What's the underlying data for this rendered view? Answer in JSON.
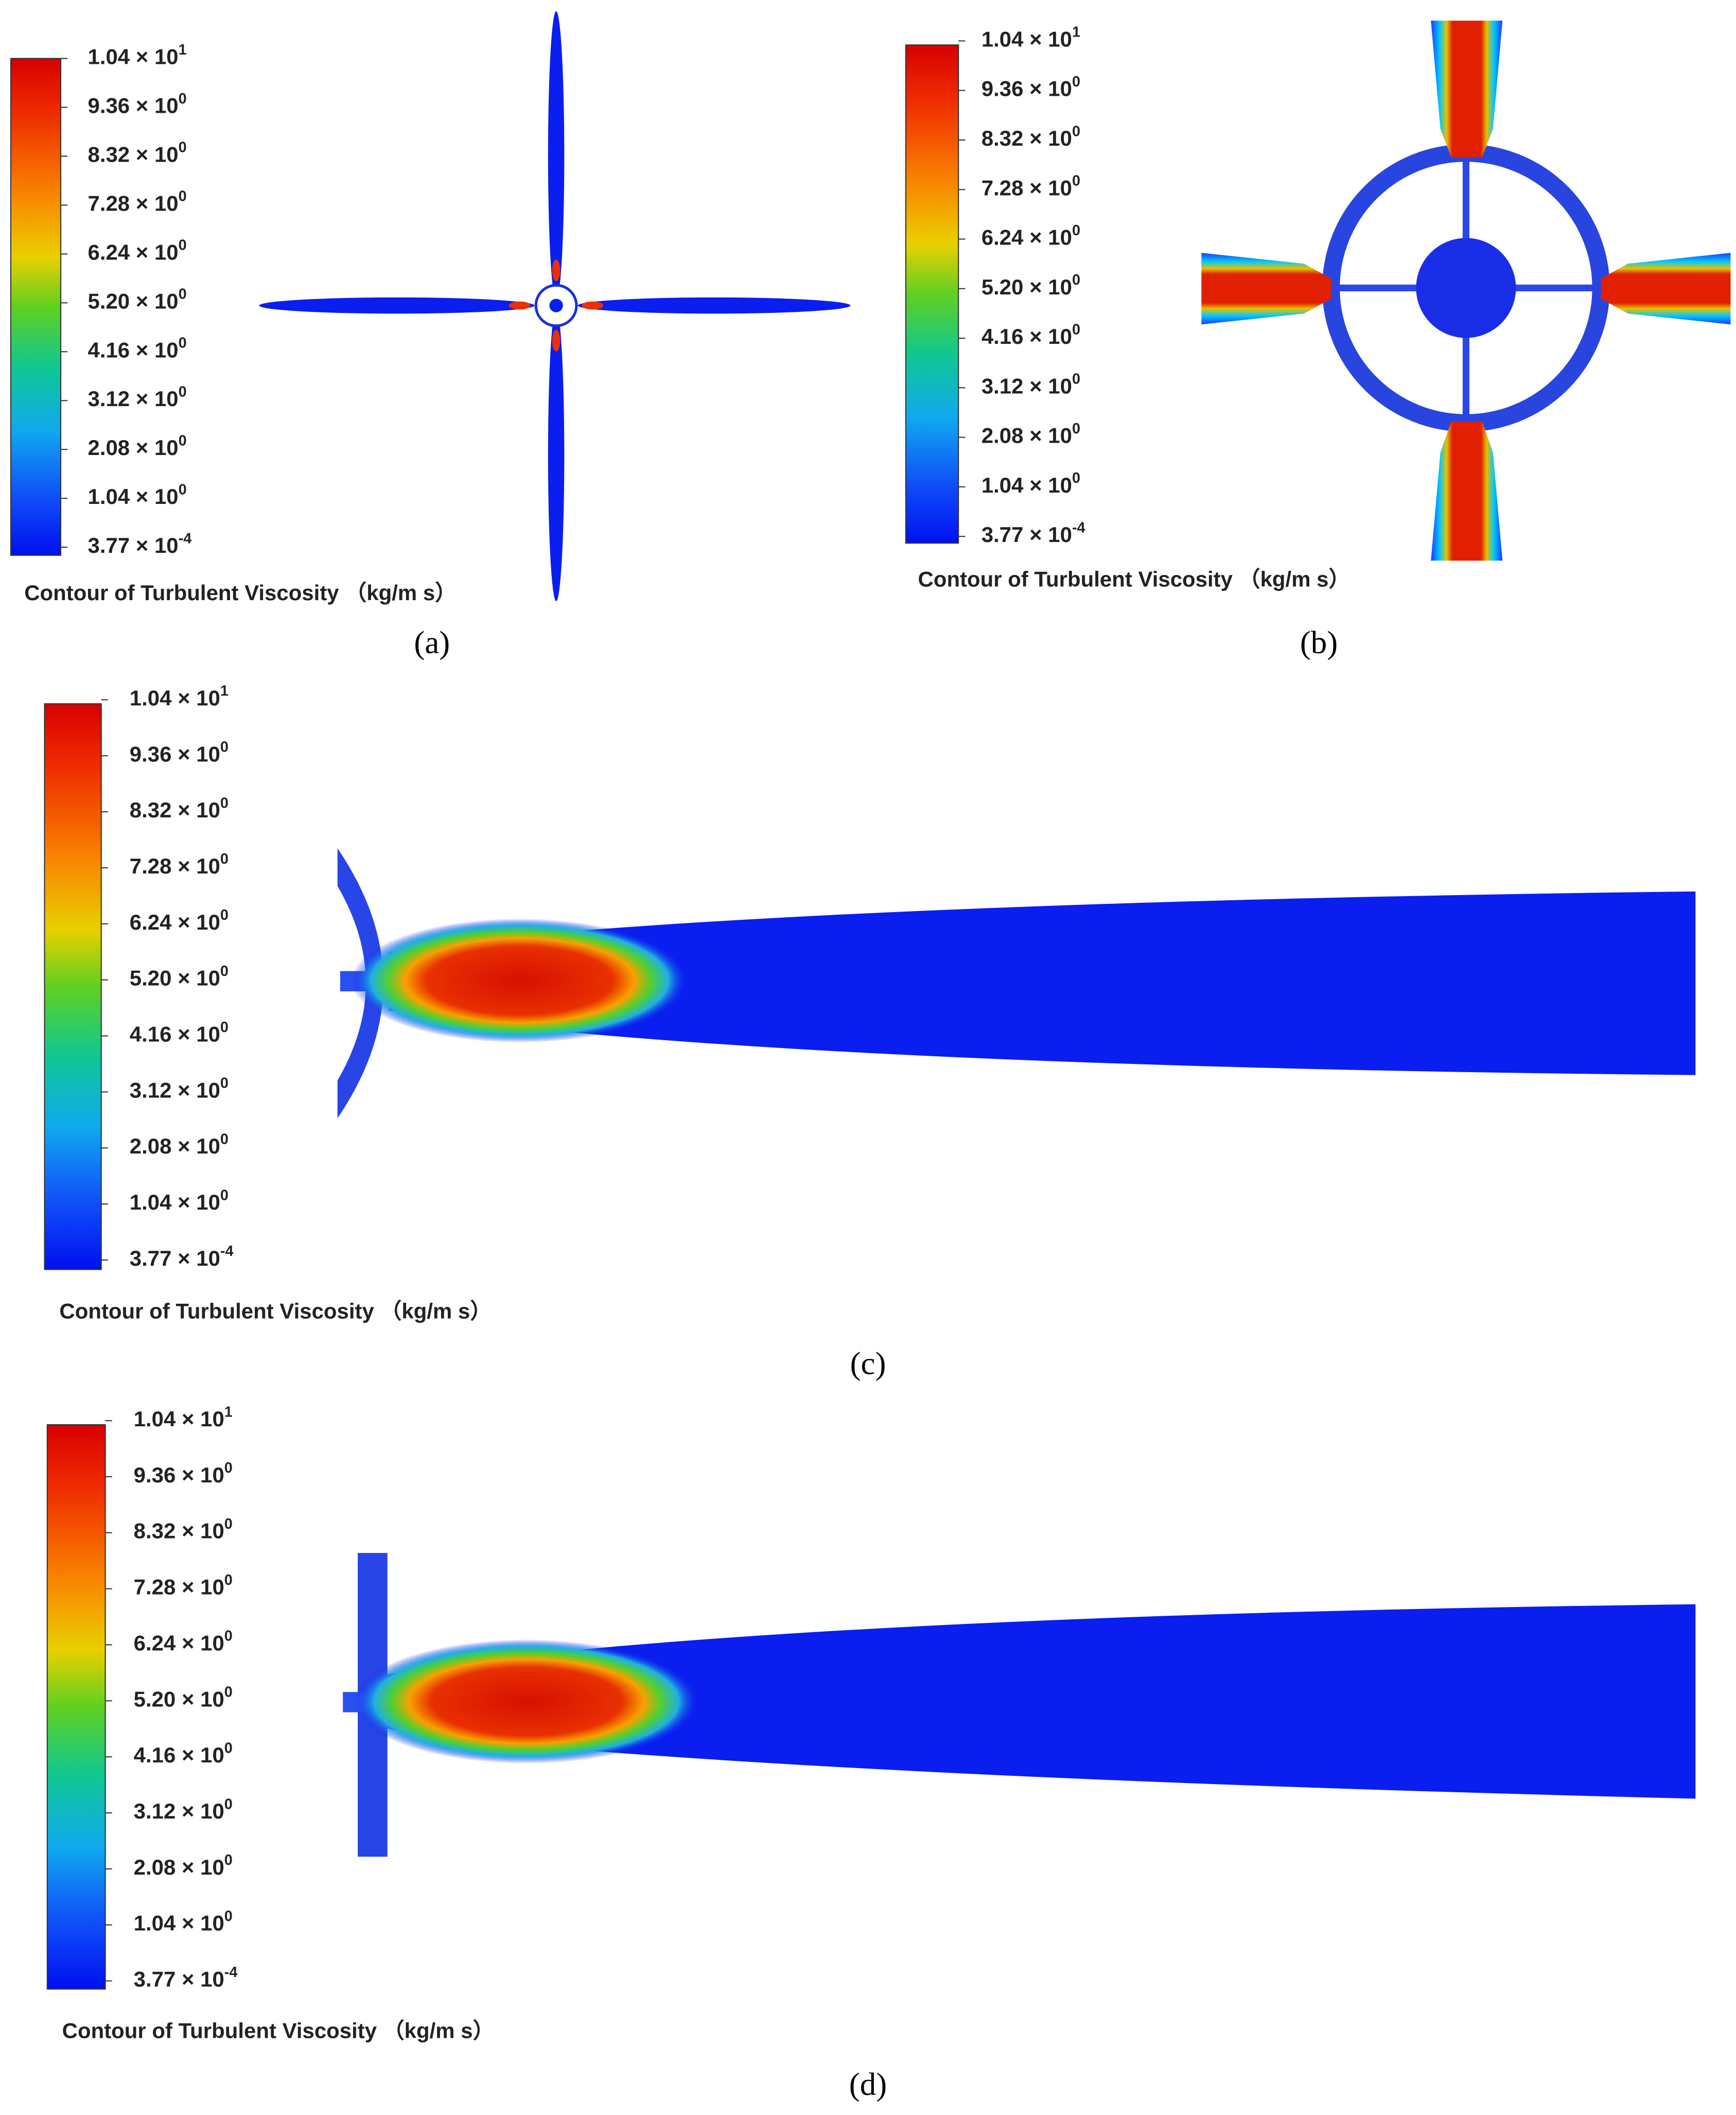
{
  "panels": [
    {
      "labels": [
        {
          "base": "1.04 × 10",
          "exp": "1"
        },
        {
          "base": "9.36 × 10",
          "exp": "0"
        },
        {
          "base": "8.32 × 10",
          "exp": "0"
        },
        {
          "base": "7.28 × 10",
          "exp": "0"
        },
        {
          "base": "6.24 × 10",
          "exp": "0"
        },
        {
          "base": "5.20 × 10",
          "exp": "0"
        },
        {
          "base": "4.16 × 10",
          "exp": "0"
        },
        {
          "base": "3.12 × 10",
          "exp": "0"
        },
        {
          "base": "2.08 × 10",
          "exp": "0"
        },
        {
          "base": "1.04 × 10",
          "exp": "0"
        },
        {
          "base": "3.77 × 10",
          "exp": "-4"
        }
      ],
      "legend_title": "Contour of Turbulent Viscosity （kg/m s）",
      "caption": "(a)"
    },
    {
      "labels": [
        {
          "base": "1.04 × 10",
          "exp": "1"
        },
        {
          "base": "9.36 × 10",
          "exp": "0"
        },
        {
          "base": "8.32 × 10",
          "exp": "0"
        },
        {
          "base": "7.28 × 10",
          "exp": "0"
        },
        {
          "base": "6.24 × 10",
          "exp": "0"
        },
        {
          "base": "5.20 × 10",
          "exp": "0"
        },
        {
          "base": "4.16 × 10",
          "exp": "0"
        },
        {
          "base": "3.12 × 10",
          "exp": "0"
        },
        {
          "base": "2.08 × 10",
          "exp": "0"
        },
        {
          "base": "1.04 × 10",
          "exp": "0"
        },
        {
          "base": "3.77 × 10",
          "exp": "-4"
        }
      ],
      "legend_title": "Contour of Turbulent Viscosity （kg/m s）",
      "caption": "(b)"
    },
    {
      "labels": [
        {
          "base": "1.04 × 10",
          "exp": "1"
        },
        {
          "base": "9.36 × 10",
          "exp": "0"
        },
        {
          "base": "8.32 × 10",
          "exp": "0"
        },
        {
          "base": "7.28 × 10",
          "exp": "0"
        },
        {
          "base": "6.24 × 10",
          "exp": "0"
        },
        {
          "base": "5.20 × 10",
          "exp": "0"
        },
        {
          "base": "4.16 × 10",
          "exp": "0"
        },
        {
          "base": "3.12 × 10",
          "exp": "0"
        },
        {
          "base": "2.08 × 10",
          "exp": "0"
        },
        {
          "base": "1.04 × 10",
          "exp": "0"
        },
        {
          "base": "3.77 × 10",
          "exp": "-4"
        }
      ],
      "legend_title": "Contour of Turbulent Viscosity （kg/m s）",
      "caption": "(c)"
    },
    {
      "labels": [
        {
          "base": "1.04 × 10",
          "exp": "1"
        },
        {
          "base": "9.36 × 10",
          "exp": "0"
        },
        {
          "base": "8.32 × 10",
          "exp": "0"
        },
        {
          "base": "7.28 × 10",
          "exp": "0"
        },
        {
          "base": "6.24 × 10",
          "exp": "0"
        },
        {
          "base": "5.20 × 10",
          "exp": "0"
        },
        {
          "base": "4.16 × 10",
          "exp": "0"
        },
        {
          "base": "3.12 × 10",
          "exp": "0"
        },
        {
          "base": "2.08 × 10",
          "exp": "0"
        },
        {
          "base": "1.04 × 10",
          "exp": "0"
        },
        {
          "base": "3.77 × 10",
          "exp": "-4"
        }
      ],
      "legend_title": "Contour of Turbulent Viscosity （kg/m s）",
      "caption": "(d)"
    }
  ]
}
